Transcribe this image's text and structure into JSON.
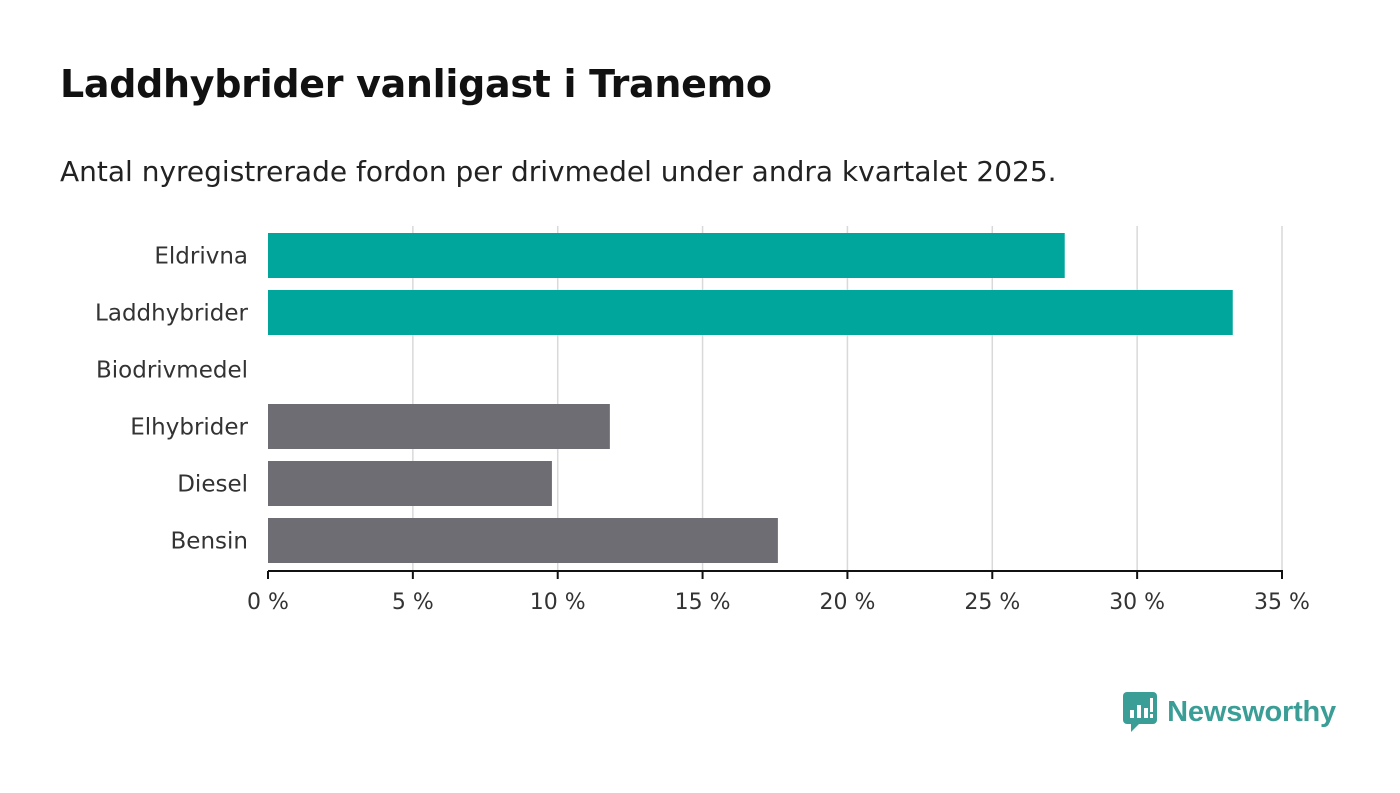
{
  "title": "Laddhybrider vanligast i Tranemo",
  "subtitle": "Antal nyregistrerade fordon per drivmedel under andra kvartalet 2025.",
  "brand": {
    "name": "Newsworthy",
    "color": "#3a9e96",
    "icon": "bar-chart-speech-bubble-icon"
  },
  "colors": {
    "highlight": "#00a59b",
    "default": "#6e6d73",
    "grid": "#d9d9d9",
    "axis": "#111111"
  },
  "chart_data": {
    "type": "bar",
    "orientation": "horizontal",
    "categories": [
      "Eldrivna",
      "Laddhybrider",
      "Biodrivmedel",
      "Elhybrider",
      "Diesel",
      "Bensin"
    ],
    "values": [
      27.5,
      33.3,
      0,
      11.8,
      9.8,
      17.6
    ],
    "highlighted": [
      true,
      true,
      false,
      false,
      false,
      false
    ],
    "xlim": [
      0,
      35
    ],
    "xticks": [
      0,
      5,
      10,
      15,
      20,
      25,
      30,
      35
    ],
    "xtick_labels": [
      "0 %",
      "5 %",
      "10 %",
      "15 %",
      "20 %",
      "25 %",
      "30 %",
      "35 %"
    ],
    "grid": "vertical"
  }
}
